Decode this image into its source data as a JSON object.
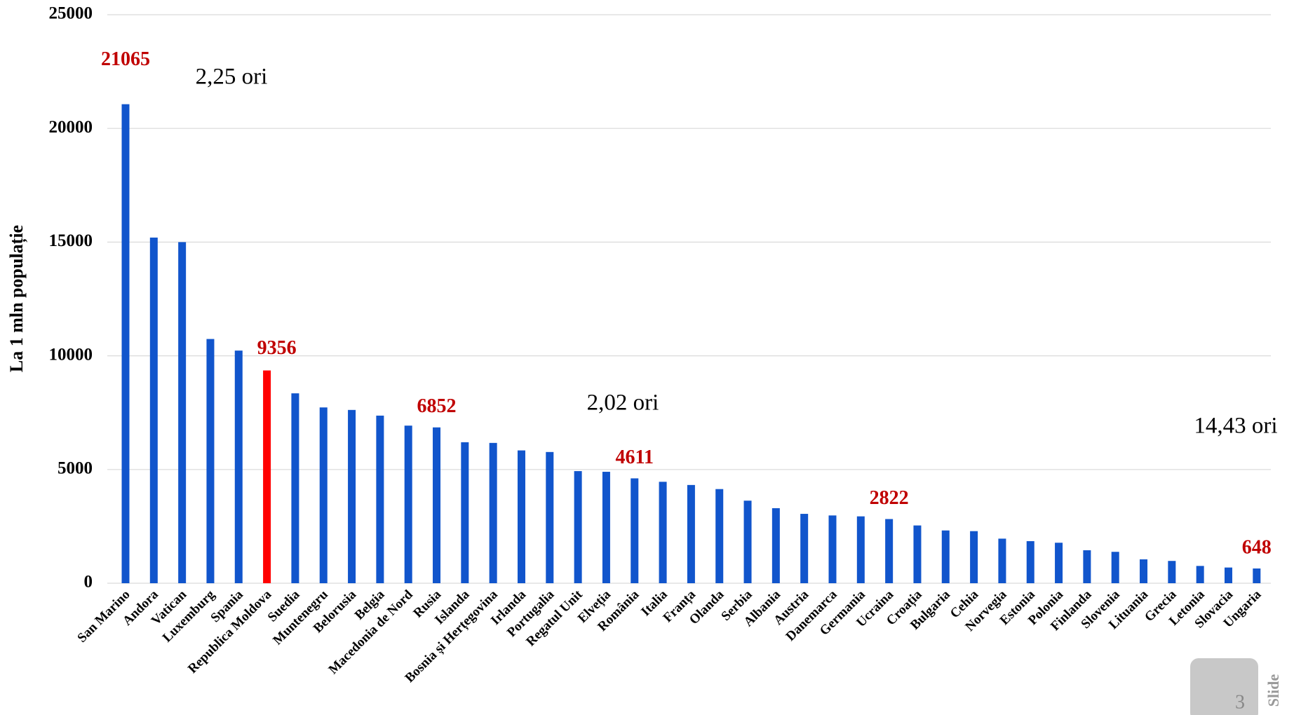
{
  "chart_data": {
    "type": "bar",
    "ylabel": "La 1 mln populație",
    "categories": [
      "San Marino",
      "Andora",
      "Vatican",
      "Luxemburg",
      "Spania",
      "Republica Moldova",
      "Suedia",
      "Muntenegru",
      "Belorusia",
      "Belgia",
      "Macedonia de Nord",
      "Rusia",
      "Islanda",
      "Bosnia și Herțegovina",
      "Irlanda",
      "Portugalia",
      "Regatul Unit",
      "Elveția",
      "România",
      "Italia",
      "Franța",
      "Olanda",
      "Serbia",
      "Albania",
      "Austria",
      "Danemarca",
      "Germania",
      "Ucraina",
      "Croația",
      "Bulgaria",
      "Cehia",
      "Norvegia",
      "Estonia",
      "Polonia",
      "Finlanda",
      "Slovenia",
      "Lituania",
      "Grecia",
      "Letonia",
      "Slovacia",
      "Ungaria"
    ],
    "values": [
      21065,
      15200,
      15000,
      10740,
      10230,
      9356,
      8350,
      7730,
      7620,
      7370,
      6930,
      6852,
      6200,
      6170,
      5840,
      5770,
      4930,
      4900,
      4611,
      4460,
      4320,
      4140,
      3630,
      3300,
      3050,
      2980,
      2940,
      2822,
      2540,
      2320,
      2290,
      1960,
      1850,
      1780,
      1450,
      1380,
      1050,
      980,
      760,
      690,
      648
    ],
    "value_labels": [
      "21065",
      null,
      null,
      null,
      null,
      "9356",
      null,
      null,
      null,
      null,
      null,
      "6852",
      null,
      null,
      null,
      null,
      null,
      null,
      "4611",
      null,
      null,
      null,
      null,
      null,
      null,
      null,
      null,
      "2822",
      null,
      null,
      null,
      null,
      null,
      null,
      null,
      null,
      null,
      null,
      null,
      null,
      "648"
    ],
    "colors": [
      "#1155cc",
      "#1155cc",
      "#1155cc",
      "#1155cc",
      "#1155cc",
      "#ff0000",
      "#1155cc",
      "#1155cc",
      "#1155cc",
      "#1155cc",
      "#1155cc",
      "#1155cc",
      "#1155cc",
      "#1155cc",
      "#1155cc",
      "#1155cc",
      "#1155cc",
      "#1155cc",
      "#1155cc",
      "#1155cc",
      "#1155cc",
      "#1155cc",
      "#1155cc",
      "#1155cc",
      "#1155cc",
      "#1155cc",
      "#1155cc",
      "#1155cc",
      "#1155cc",
      "#1155cc",
      "#1155cc",
      "#1155cc",
      "#1155cc",
      "#1155cc",
      "#1155cc",
      "#1155cc",
      "#1155cc",
      "#1155cc",
      "#1155cc",
      "#1155cc",
      "#1155cc"
    ],
    "label_color": "#c00000",
    "ylim": [
      0,
      25000
    ],
    "yticks": [
      0,
      5000,
      10000,
      15000,
      20000,
      25000
    ],
    "grid": true,
    "annotations": [
      "2,25 ori",
      "2,02 ori",
      "14,43 ori"
    ]
  },
  "slide": {
    "number": "3",
    "label": "Slide"
  }
}
